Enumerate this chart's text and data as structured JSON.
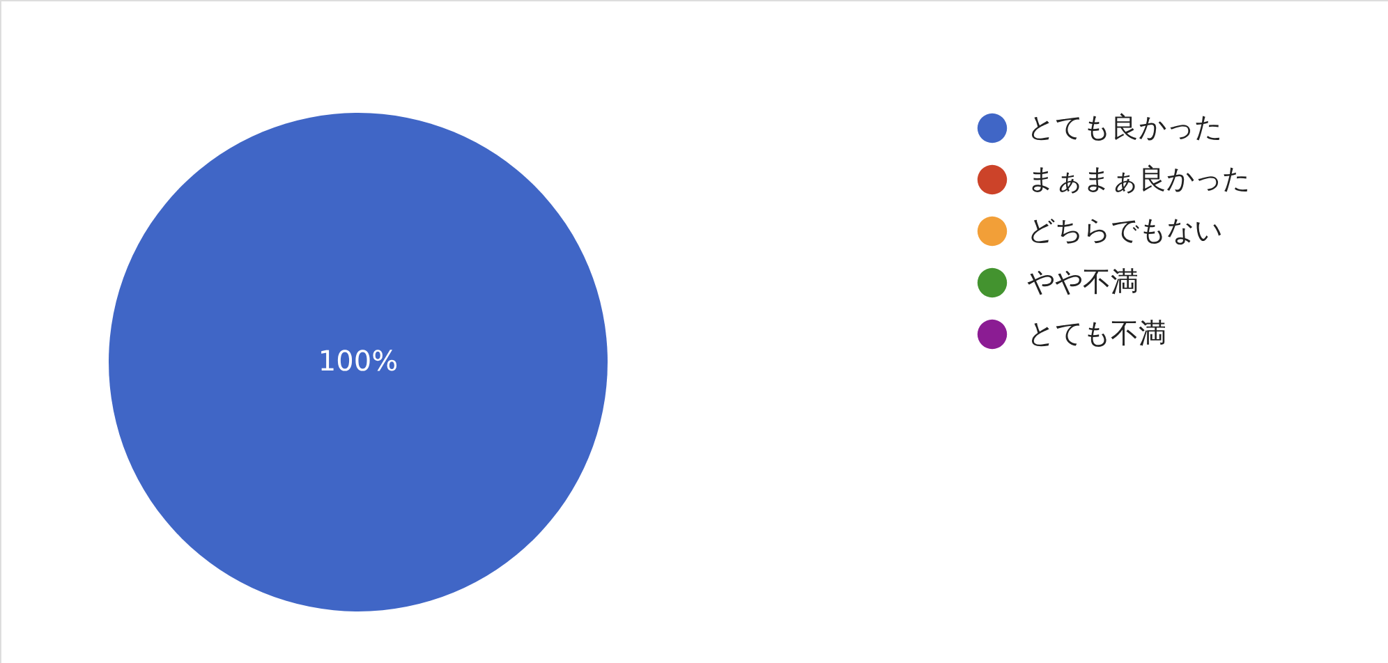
{
  "chart_data": {
    "type": "pie",
    "categories": [
      "とても良かった",
      "まぁまぁ良かった",
      "どちらでもない",
      "やや不満",
      "とても不満"
    ],
    "values": [
      100,
      0,
      0,
      0,
      0
    ],
    "colors": [
      "#4066c6",
      "#cc4329",
      "#f29f38",
      "#43932f",
      "#8b1c93"
    ],
    "value_labels": [
      "100%",
      null,
      null,
      null,
      null
    ],
    "legend": "right"
  }
}
